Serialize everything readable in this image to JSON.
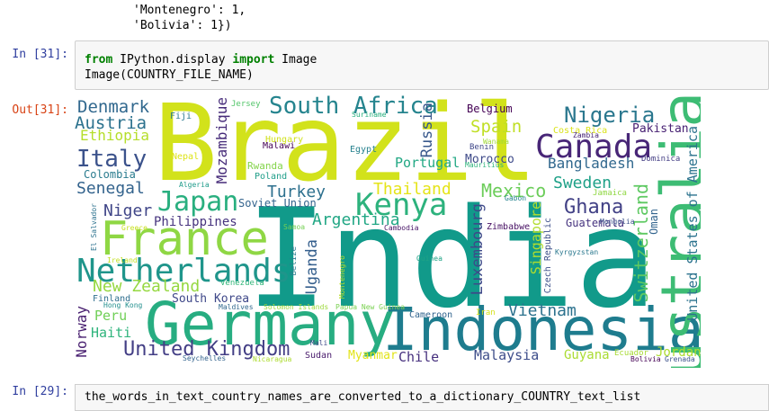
{
  "previous_output": {
    "line1": "'Montenegro': 1,",
    "line2": "'Bolivia': 1})"
  },
  "cell31": {
    "in_prompt": "In [31]:",
    "out_prompt": "Out[31]:",
    "code": {
      "kw_from": "from",
      "module": "IPython.display",
      "kw_import": "import",
      "name": "Image",
      "line2": "Image(COUNTRY_FILE_NAME)"
    }
  },
  "cell29": {
    "in_prompt": "In [29]:",
    "code_line": "the_words_in_text_country_names_are_converted_to_a_dictionary_COUNTRY_text_list"
  },
  "wordcloud": {
    "words": [
      {
        "text": "Brazil",
        "color": "#d2e21b"
      },
      {
        "text": "India",
        "color": "#119a8a"
      },
      {
        "text": "Indonesia",
        "color": "#1e7c8e"
      },
      {
        "text": "Germany",
        "color": "#27ad81"
      },
      {
        "text": "Australia",
        "color": "#3dbc74"
      },
      {
        "text": "France",
        "color": "#8fd744"
      },
      {
        "text": "Netherlands",
        "color": "#1f958b"
      },
      {
        "text": "Canada",
        "color": "#482677"
      },
      {
        "text": "South Africa",
        "color": "#25848e"
      },
      {
        "text": "Kenya",
        "color": "#2db27d"
      },
      {
        "text": "Japan",
        "color": "#29af7f"
      },
      {
        "text": "Nigeria",
        "color": "#2a778e"
      },
      {
        "text": "United Kingdom",
        "color": "#433e85"
      },
      {
        "text": "Italy",
        "color": "#3b528b"
      },
      {
        "text": "Denmark",
        "color": "#31688e"
      },
      {
        "text": "Austria",
        "color": "#2c728e"
      },
      {
        "text": "Ethiopia",
        "color": "#b5de2b"
      },
      {
        "text": "Senegal",
        "color": "#33638d"
      },
      {
        "text": "Niger",
        "color": "#404688"
      },
      {
        "text": "Philippines",
        "color": "#46337e"
      },
      {
        "text": "Turkey",
        "color": "#2d708e"
      },
      {
        "text": "Argentina",
        "color": "#22a785"
      },
      {
        "text": "Thailand",
        "color": "#e5e419"
      },
      {
        "text": "Mexico",
        "color": "#6ccd5a"
      },
      {
        "text": "Spain",
        "color": "#c0df25"
      },
      {
        "text": "Portugal",
        "color": "#22a884"
      },
      {
        "text": "Russia",
        "color": "#38588c"
      },
      {
        "text": "Bangladesh",
        "color": "#31688e"
      },
      {
        "text": "Sweden",
        "color": "#1fa188"
      },
      {
        "text": "Ghana",
        "color": "#424186"
      },
      {
        "text": "Vietnam",
        "color": "#2c728e"
      },
      {
        "text": "Switzerland",
        "color": "#5ec962"
      },
      {
        "text": "United States of America",
        "color": "#2c738e"
      },
      {
        "text": "Singapore",
        "color": "#b2dd2d"
      },
      {
        "text": "Luxembourg",
        "color": "#3e4989"
      },
      {
        "text": "Uganda",
        "color": "#355f8d"
      },
      {
        "text": "Mozambique",
        "color": "#472c7a"
      },
      {
        "text": "New Zealand",
        "color": "#95d840"
      },
      {
        "text": "Peru",
        "color": "#70cf57"
      },
      {
        "text": "Haiti",
        "color": "#2fb47c"
      },
      {
        "text": "Norway",
        "color": "#481f70"
      },
      {
        "text": "South Korea",
        "color": "#3f4889"
      },
      {
        "text": "Chile",
        "color": "#46307e"
      },
      {
        "text": "Malaysia",
        "color": "#3d4d8a"
      },
      {
        "text": "Guyana",
        "color": "#aadc32"
      },
      {
        "text": "Jordan",
        "color": "#addc30"
      },
      {
        "text": "Colombia",
        "color": "#297b8e"
      },
      {
        "text": "Guatemala",
        "color": "#46337f"
      },
      {
        "text": "Morocco",
        "color": "#3e4a89"
      },
      {
        "text": "Belgium",
        "color": "#440154"
      },
      {
        "text": "Pakistan",
        "color": "#482173"
      },
      {
        "text": "Myanmar",
        "color": "#e2e418"
      },
      {
        "text": "Oman",
        "color": "#32648e"
      },
      {
        "text": "Czech Republic",
        "color": "#3c4f8a"
      },
      {
        "text": "Soviet Union",
        "color": "#33638d"
      },
      {
        "text": "Finland",
        "color": "#2e6e8e"
      },
      {
        "text": "Fiji",
        "color": "#2a788e"
      },
      {
        "text": "Jersey",
        "color": "#52c569"
      },
      {
        "text": "Suriname",
        "color": "#2ab07f"
      },
      {
        "text": "Malawi",
        "color": "#440154"
      },
      {
        "text": "Hungary",
        "color": "#d0e11c"
      },
      {
        "text": "Nepal",
        "color": "#dde318"
      },
      {
        "text": "Rwanda",
        "color": "#84d44b"
      },
      {
        "text": "Poland",
        "color": "#1f9e89"
      },
      {
        "text": "Egypt",
        "color": "#26818e"
      },
      {
        "text": "Algeria",
        "color": "#1e9b8a"
      },
      {
        "text": "Zimbabwe",
        "color": "#471063"
      },
      {
        "text": "Cambodia",
        "color": "#481567"
      },
      {
        "text": "Samoa",
        "color": "#75d054"
      },
      {
        "text": "Gabon",
        "color": "#25838e"
      },
      {
        "text": "Benin",
        "color": "#3f4788"
      },
      {
        "text": "Wanama",
        "color": "#a2da37"
      },
      {
        "text": "Mauritius",
        "color": "#2eb37c"
      },
      {
        "text": "Costa Rica",
        "color": "#dae319"
      },
      {
        "text": "Zambia",
        "color": "#482475"
      },
      {
        "text": "Dominica",
        "color": "#433d84"
      },
      {
        "text": "Mongolia",
        "color": "#3b528b"
      },
      {
        "text": "Jamaica",
        "color": "#90d743"
      },
      {
        "text": "Kyrgyzstan",
        "color": "#2a788e"
      },
      {
        "text": "Guinea",
        "color": "#20a386"
      },
      {
        "text": "Ireland",
        "color": "#c2df23"
      },
      {
        "text": "Greece",
        "color": "#c8e020"
      },
      {
        "text": "El Salvador",
        "color": "#2c728e"
      },
      {
        "text": "Belize",
        "color": "#287d8e"
      },
      {
        "text": "Venezuela",
        "color": "#32b67a"
      },
      {
        "text": "Montenegro",
        "color": "#bade28"
      },
      {
        "text": "Maldives",
        "color": "#31688e"
      },
      {
        "text": "Hong Kong",
        "color": "#218f8d"
      },
      {
        "text": "Solomon Islands",
        "color": "#9dd93b"
      },
      {
        "text": "Papua New Guinea",
        "color": "#7ad151"
      },
      {
        "text": "Cameroon",
        "color": "#32648e"
      },
      {
        "text": "Iran",
        "color": "#d5e21a"
      },
      {
        "text": "Mali",
        "color": "#3e4989"
      },
      {
        "text": "Sudan",
        "color": "#481a6c"
      },
      {
        "text": "Seychelles",
        "color": "#33638d"
      },
      {
        "text": "Nicaragua",
        "color": "#addc30"
      },
      {
        "text": "Ecuador",
        "color": "#a8db34"
      },
      {
        "text": "Bolivia",
        "color": "#440154"
      },
      {
        "text": "Grenada",
        "color": "#3b518b"
      }
    ]
  }
}
